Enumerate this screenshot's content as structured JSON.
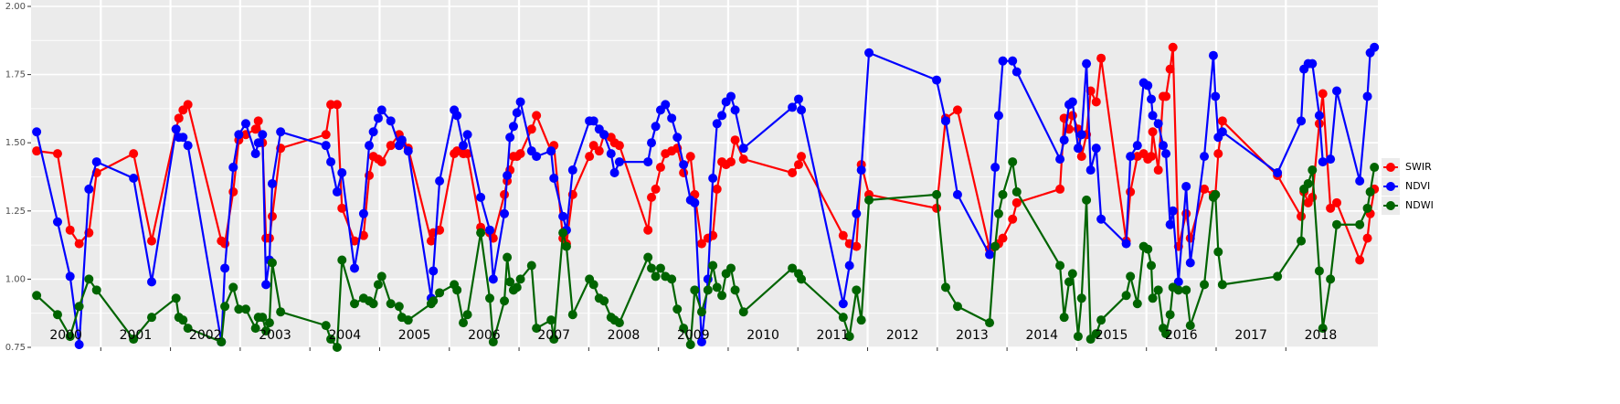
{
  "chart_data": {
    "type": "line",
    "xlim": [
      2000,
      2019.32
    ],
    "xticks": [
      2001,
      2002,
      2003,
      2004,
      2005,
      2006,
      2007,
      2008,
      2009,
      2010,
      2011,
      2012,
      2013,
      2014,
      2015,
      2016,
      2017,
      2018
    ],
    "ylim": [
      0.75,
      2.0
    ],
    "yticks": [
      0.75,
      {
        "value": 1.0,
        "label": "1.00"
      },
      1.25,
      {
        "value": 1.5,
        "label": "1.50"
      },
      1.75,
      {
        "value": 2.0,
        "label": "2.00"
      }
    ],
    "grid": true,
    "legend": "right",
    "annotations": [
      {
        "x": 2000.5,
        "text": "2000"
      },
      {
        "x": 2001.5,
        "text": "2001"
      },
      {
        "x": 2002.5,
        "text": "2002"
      },
      {
        "x": 2003.5,
        "text": "2003"
      },
      {
        "x": 2004.5,
        "text": "2004"
      },
      {
        "x": 2005.5,
        "text": "2005"
      },
      {
        "x": 2006.5,
        "text": "2006"
      },
      {
        "x": 2007.5,
        "text": "2007"
      },
      {
        "x": 2008.5,
        "text": "2008"
      },
      {
        "x": 2009.5,
        "text": "2009"
      },
      {
        "x": 2010.5,
        "text": "2010"
      },
      {
        "x": 2011.5,
        "text": "2011"
      },
      {
        "x": 2012.5,
        "text": "2012"
      },
      {
        "x": 2013.5,
        "text": "2013"
      },
      {
        "x": 2014.5,
        "text": "2014"
      },
      {
        "x": 2015.5,
        "text": "2015"
      },
      {
        "x": 2016.5,
        "text": "2016"
      },
      {
        "x": 2017.5,
        "text": "2017"
      },
      {
        "x": 2018.5,
        "text": "2018"
      }
    ],
    "x": [
      2000.08,
      2000.38,
      2000.56,
      2000.69,
      2000.83,
      2000.94,
      2001.47,
      2001.73,
      2002.08,
      2002.12,
      2002.18,
      2002.25,
      2002.73,
      2002.78,
      2002.9,
      2002.98,
      2003.08,
      2003.22,
      2003.26,
      2003.32,
      2003.37,
      2003.42,
      2003.46,
      2003.58,
      2004.23,
      2004.3,
      2004.39,
      2004.46,
      2004.64,
      2004.77,
      2004.85,
      2004.91,
      2004.98,
      2005.03,
      2005.16,
      2005.28,
      2005.32,
      2005.41,
      2005.74,
      2005.77,
      2005.86,
      2006.07,
      2006.11,
      2006.2,
      2006.26,
      2006.45,
      2006.58,
      2006.63,
      2006.79,
      2006.83,
      2006.87,
      2006.92,
      2006.97,
      2007.02,
      2007.18,
      2007.25,
      2007.46,
      2007.5,
      2007.63,
      2007.68,
      2007.77,
      2008.01,
      2008.07,
      2008.15,
      2008.22,
      2008.32,
      2008.37,
      2008.44,
      2008.85,
      2008.9,
      2008.96,
      2009.03,
      2009.1,
      2009.19,
      2009.27,
      2009.36,
      2009.46,
      2009.52,
      2009.62,
      2009.71,
      2009.78,
      2009.84,
      2009.91,
      2009.97,
      2010.04,
      2010.1,
      2010.22,
      2010.92,
      2011.01,
      2011.05,
      2011.65,
      2011.74,
      2011.84,
      2011.91,
      2012.02,
      2012.99,
      2013.12,
      2013.29,
      2013.75,
      2013.83,
      2013.88,
      2013.94,
      2014.08,
      2014.14,
      2014.76,
      2014.82,
      2014.89,
      2014.94,
      2015.02,
      2015.07,
      2015.14,
      2015.2,
      2015.28,
      2015.35,
      2015.71,
      2015.77,
      2015.87,
      2015.96,
      2016.02,
      2016.07,
      2016.09,
      2016.17,
      2016.24,
      2016.28,
      2016.34,
      2016.38,
      2016.46,
      2016.57,
      2016.63,
      2016.83,
      2016.96,
      2016.99,
      2017.03,
      2017.09,
      2017.88,
      2018.22,
      2018.26,
      2018.32,
      2018.38,
      2018.48,
      2018.53,
      2018.64,
      2018.73,
      2019.06,
      2019.17,
      2019.21,
      2019.27
    ],
    "series": [
      {
        "name": "SWIR",
        "color": "#ff0000",
        "values": [
          1.47,
          1.46,
          1.18,
          1.13,
          1.17,
          1.39,
          1.46,
          1.14,
          1.55,
          1.59,
          1.62,
          1.64,
          1.14,
          1.13,
          1.32,
          1.51,
          1.53,
          1.55,
          1.58,
          1.5,
          1.15,
          1.15,
          1.23,
          1.48,
          1.53,
          1.64,
          1.64,
          1.26,
          1.14,
          1.16,
          1.38,
          1.45,
          1.44,
          1.43,
          1.49,
          1.53,
          1.5,
          1.48,
          1.14,
          1.17,
          1.18,
          1.46,
          1.47,
          1.46,
          1.46,
          1.19,
          1.17,
          1.15,
          1.31,
          1.36,
          1.4,
          1.45,
          1.45,
          1.46,
          1.55,
          1.6,
          1.47,
          1.49,
          1.15,
          1.13,
          1.31,
          1.45,
          1.49,
          1.47,
          1.53,
          1.52,
          1.5,
          1.49,
          1.18,
          1.3,
          1.33,
          1.41,
          1.46,
          1.47,
          1.48,
          1.39,
          1.45,
          1.31,
          1.13,
          1.15,
          1.16,
          1.33,
          1.43,
          1.42,
          1.43,
          1.51,
          1.44,
          1.39,
          1.42,
          1.45,
          1.16,
          1.13,
          1.12,
          1.42,
          1.31,
          1.26,
          1.59,
          1.62,
          1.11,
          1.12,
          1.13,
          1.15,
          1.22,
          1.28,
          1.33,
          1.59,
          1.55,
          1.6,
          1.55,
          1.45,
          1.53,
          1.69,
          1.65,
          1.81,
          1.14,
          1.32,
          1.45,
          1.46,
          1.44,
          1.45,
          1.54,
          1.4,
          1.67,
          1.67,
          1.77,
          1.85,
          1.12,
          1.24,
          1.15,
          1.33,
          1.31,
          1.31,
          1.46,
          1.58,
          1.38,
          1.23,
          1.32,
          1.28,
          1.3,
          1.57,
          1.68,
          1.26,
          1.28,
          1.07,
          1.15,
          1.24,
          1.33
        ]
      },
      {
        "name": "NDVI",
        "color": "#0000ff",
        "values": [
          1.54,
          1.21,
          1.01,
          0.76,
          1.33,
          1.43,
          1.37,
          0.99,
          1.55,
          1.52,
          1.52,
          1.49,
          0.77,
          1.04,
          1.41,
          1.53,
          1.57,
          1.46,
          1.5,
          1.53,
          0.98,
          1.07,
          1.35,
          1.54,
          1.49,
          1.43,
          1.32,
          1.39,
          1.04,
          1.24,
          1.49,
          1.54,
          1.59,
          1.62,
          1.58,
          1.49,
          1.51,
          1.47,
          0.93,
          1.03,
          1.36,
          1.62,
          1.6,
          1.49,
          1.53,
          1.3,
          1.18,
          1.0,
          1.24,
          1.38,
          1.52,
          1.56,
          1.61,
          1.65,
          1.47,
          1.45,
          1.47,
          1.37,
          1.23,
          1.18,
          1.4,
          1.58,
          1.58,
          1.55,
          1.53,
          1.46,
          1.39,
          1.43,
          1.43,
          1.5,
          1.56,
          1.62,
          1.64,
          1.59,
          1.52,
          1.42,
          1.29,
          1.28,
          0.77,
          1.0,
          1.37,
          1.57,
          1.6,
          1.65,
          1.67,
          1.62,
          1.48,
          1.63,
          1.66,
          1.62,
          0.91,
          1.05,
          1.24,
          1.4,
          1.83,
          1.73,
          1.58,
          1.31,
          1.09,
          1.41,
          1.6,
          1.8,
          1.8,
          1.76,
          1.44,
          1.51,
          1.64,
          1.65,
          1.48,
          1.53,
          1.79,
          1.4,
          1.48,
          1.22,
          1.13,
          1.45,
          1.49,
          1.72,
          1.71,
          1.66,
          1.6,
          1.57,
          1.49,
          1.46,
          1.2,
          1.25,
          0.99,
          1.34,
          1.06,
          1.45,
          1.82,
          1.67,
          1.52,
          1.54,
          1.39,
          1.58,
          1.77,
          1.79,
          1.79,
          1.6,
          1.43,
          1.44,
          1.69,
          1.36,
          1.67,
          1.83,
          1.85
        ]
      },
      {
        "name": "NDWI",
        "color": "#006400",
        "values": [
          0.94,
          0.87,
          0.79,
          0.9,
          1.0,
          0.96,
          0.78,
          0.86,
          0.93,
          0.86,
          0.85,
          0.82,
          0.77,
          0.9,
          0.97,
          0.89,
          0.89,
          0.82,
          0.86,
          0.86,
          0.81,
          0.84,
          1.06,
          0.88,
          0.83,
          0.78,
          0.75,
          1.07,
          0.91,
          0.93,
          0.92,
          0.91,
          0.98,
          1.01,
          0.91,
          0.9,
          0.86,
          0.85,
          0.91,
          0.92,
          0.95,
          0.98,
          0.96,
          0.84,
          0.87,
          1.17,
          0.93,
          0.77,
          0.92,
          1.08,
          0.99,
          0.96,
          0.97,
          1.0,
          1.05,
          0.82,
          0.85,
          0.78,
          1.17,
          1.12,
          0.87,
          1.0,
          0.98,
          0.93,
          0.92,
          0.86,
          0.85,
          0.84,
          1.08,
          1.04,
          1.01,
          1.04,
          1.01,
          1.0,
          0.89,
          0.82,
          0.76,
          0.96,
          0.88,
          0.96,
          1.05,
          0.97,
          0.94,
          1.02,
          1.04,
          0.96,
          0.88,
          1.04,
          1.02,
          1.0,
          0.86,
          0.79,
          0.96,
          0.85,
          1.29,
          1.31,
          0.97,
          0.9,
          0.84,
          1.12,
          1.24,
          1.31,
          1.43,
          1.32,
          1.05,
          0.86,
          0.99,
          1.02,
          0.79,
          0.93,
          1.29,
          0.78,
          0.8,
          0.85,
          0.94,
          1.01,
          0.91,
          1.12,
          1.11,
          1.05,
          0.93,
          0.96,
          0.82,
          0.8,
          0.87,
          0.97,
          0.96,
          0.96,
          0.83,
          0.98,
          1.3,
          1.31,
          1.1,
          0.98,
          1.01,
          1.14,
          1.33,
          1.35,
          1.4,
          1.03,
          0.82,
          1.0,
          1.2,
          1.2,
          1.26,
          1.32,
          1.41
        ]
      }
    ]
  }
}
